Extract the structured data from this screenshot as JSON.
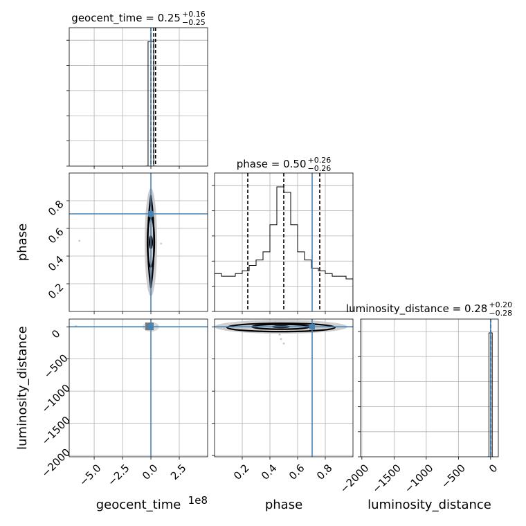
{
  "chart_data": {
    "type": "corner",
    "parameters": [
      "geocent_time",
      "phase",
      "luminosity_distance"
    ],
    "titles": [
      {
        "name": "geocent_time",
        "value": "0.25",
        "plus": "+0.16",
        "minus": "−0.25"
      },
      {
        "name": "phase",
        "value": "0.50",
        "plus": "+0.26",
        "minus": "−0.26"
      },
      {
        "name": "luminosity_distance",
        "value": "0.28",
        "plus": "+0.20",
        "minus": "−0.28"
      }
    ],
    "axes": {
      "geocent_time": {
        "label": "geocent_time",
        "range": [
          -7.2,
          5.0
        ],
        "ticks": [
          -5.0,
          -2.5,
          0.0,
          2.5
        ],
        "tick_labels": [
          "−5.0",
          "−2.5",
          "0.0",
          "2.5"
        ],
        "offset_text": "1e8"
      },
      "phase": {
        "label": "phase",
        "range": [
          0.0,
          1.0
        ],
        "ticks": [
          0.2,
          0.4,
          0.6,
          0.8
        ],
        "tick_labels": [
          "0.2",
          "0.4",
          "0.6",
          "0.8"
        ]
      },
      "luminosity_distance": {
        "label": "luminosity_distance",
        "range": [
          -2020,
          120
        ],
        "ticks": [
          -2000,
          -1500,
          -1000,
          -500,
          0
        ],
        "tick_labels": [
          "−2000",
          "−1500",
          "−1000",
          "−500",
          "0"
        ]
      }
    },
    "truths": {
      "geocent_time": 0.0,
      "phase": 0.705,
      "luminosity_distance": 0.0
    },
    "quantiles": {
      "geocent_time": [
        0.0,
        0.25,
        0.41
      ],
      "phase": [
        0.24,
        0.5,
        0.76
      ],
      "luminosity_distance": [
        0.0,
        0.28,
        0.48
      ]
    },
    "histograms": {
      "geocent_time": {
        "bin_edges": [
          -0.5,
          -0.25,
          0.0,
          0.25,
          0.5
        ],
        "counts": [
          0,
          20,
          20,
          0
        ]
      },
      "phase": {
        "bin_edges": [
          0.0,
          0.05,
          0.1,
          0.15,
          0.2,
          0.25,
          0.3,
          0.35,
          0.4,
          0.45,
          0.5,
          0.55,
          0.6,
          0.65,
          0.7,
          0.75,
          0.8,
          0.85,
          0.9,
          0.95,
          1.0
        ],
        "counts": [
          7,
          6.5,
          6.5,
          7,
          7.5,
          8.5,
          9.5,
          11,
          16,
          23,
          22,
          16,
          11,
          9.5,
          8,
          7.5,
          7,
          6.5,
          6.5,
          6
        ]
      },
      "luminosity_distance": {
        "bin_edges": [
          -50,
          -25,
          0,
          25,
          50
        ],
        "counts": [
          0,
          20,
          20,
          0
        ]
      }
    },
    "grid": true,
    "legend": "none"
  }
}
